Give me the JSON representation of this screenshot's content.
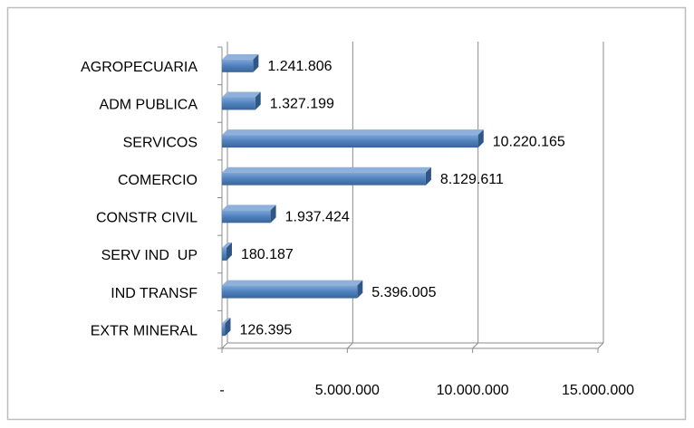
{
  "chart_data": {
    "type": "bar",
    "orientation": "horizontal",
    "categories": [
      "AGROPECUARIA",
      "ADM PUBLICA",
      "SERVICOS",
      "COMERCIO",
      "CONSTR CIVIL",
      "SERV IND  UP",
      "IND TRANSF",
      "EXTR MINERAL"
    ],
    "values": [
      1241806,
      1327199,
      10220165,
      8129611,
      1937424,
      180187,
      5396005,
      126395
    ],
    "value_labels": [
      "1.241.806",
      "1.327.199",
      "10.220.165",
      "8.129.611",
      "1.937.424",
      "180.187",
      "5.396.005",
      "126.395"
    ],
    "color": "#4f81bd",
    "xlim": [
      0,
      15000000
    ],
    "xticks": [
      {
        "value": 0,
        "label": "-"
      },
      {
        "value": 5000000,
        "label": "5.000.000"
      },
      {
        "value": 10000000,
        "label": "10.000.000"
      },
      {
        "value": 15000000,
        "label": "15.000.000"
      }
    ],
    "grid": true
  }
}
